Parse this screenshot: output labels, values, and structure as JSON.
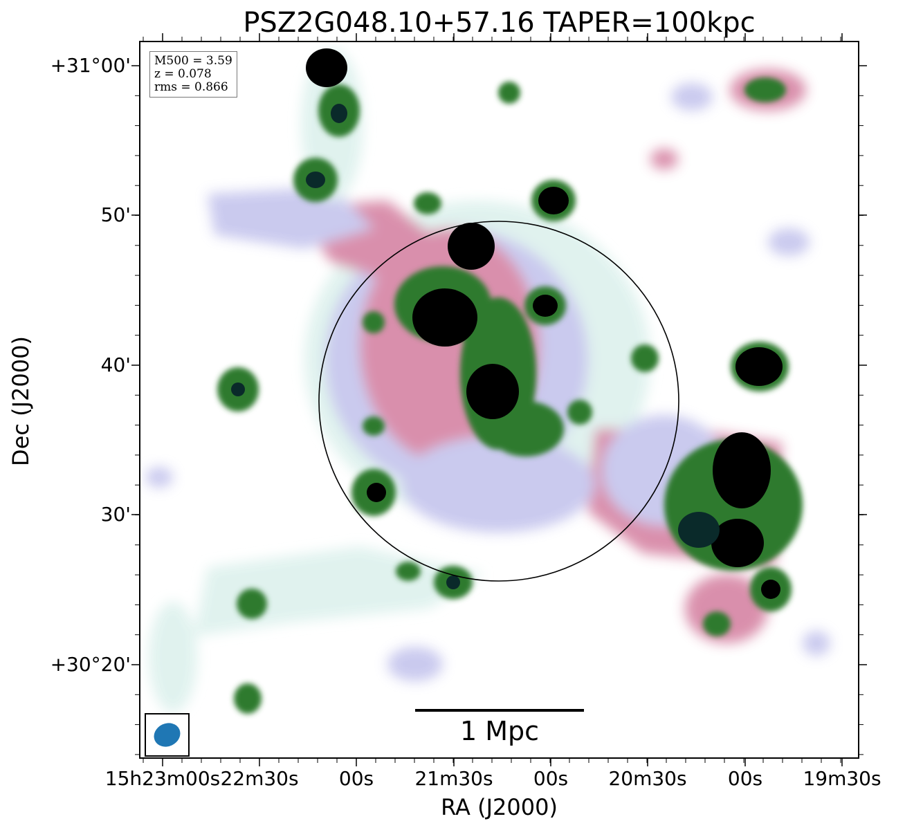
{
  "title": "PSZ2G048.10+57.16 TAPER=100kpc",
  "axes": {
    "xlabel": "RA (J2000)",
    "ylabel": "Dec (J2000)",
    "xticks": [
      "15h23m00s",
      "22m30s",
      "00s",
      "21m30s",
      "00s",
      "20m30s",
      "00s",
      "19m30s"
    ],
    "yticks": [
      "+31°00'",
      "50'",
      "40'",
      "30'",
      "+30°20'"
    ]
  },
  "info": {
    "m500": "M500 = 3.59",
    "z": "z = 0.078",
    "rms": "rms = 0.866"
  },
  "scalebar": {
    "label": "1 Mpc"
  },
  "colors": {
    "beam": "#1f77b4",
    "colormap": [
      "#ffffff",
      "#dff2ee",
      "#c8c8ee",
      "#d88aa8",
      "#2f7a2f",
      "#0a2a2a",
      "#000000"
    ]
  }
}
